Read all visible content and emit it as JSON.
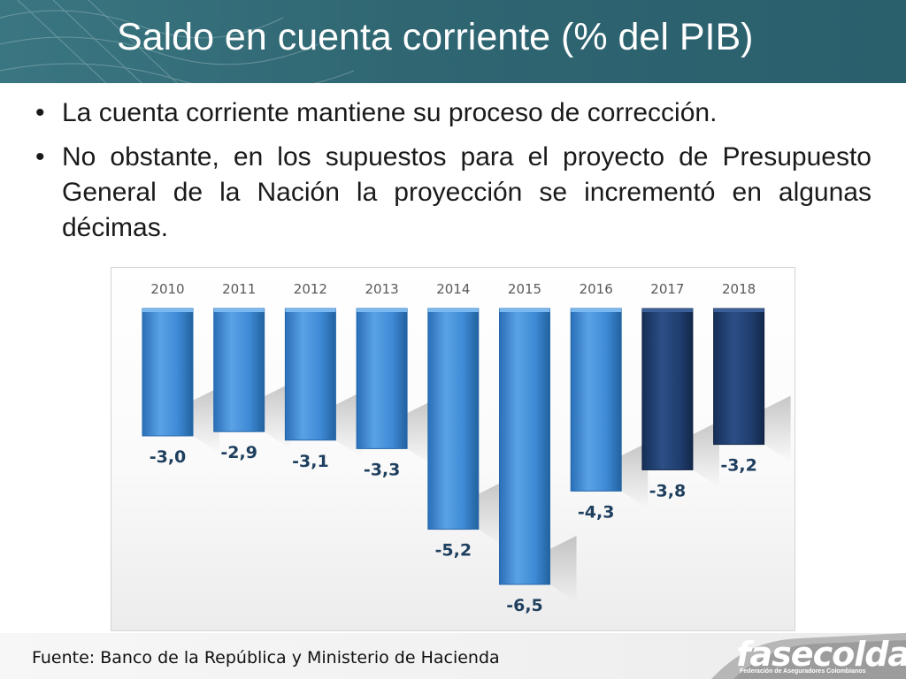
{
  "slide": {
    "title": "Saldo en cuenta corriente (% del PIB)",
    "bullets": [
      "La cuenta corriente mantiene su proceso de corrección.",
      "No obstante, en los supuestos para el proyecto de Presupuesto General de la Nación la proyección se incrementó en algunas décimas."
    ],
    "bullet_marker": "•"
  },
  "footer": {
    "source": "Fuente: Banco de la República y Ministerio de Hacienda",
    "logo_text": "fasecolda",
    "logo_subtitle": "Federación de Aseguradores Colombianos"
  },
  "colors": {
    "header_bg": "#2f6672",
    "bar_actual": "#3d89d6",
    "bar_projection": "#1e3d6e",
    "label_text": "#1f3f5f",
    "category_text": "#595959"
  },
  "chart_data": {
    "type": "bar",
    "title": "",
    "xlabel": "",
    "ylabel": "",
    "categories": [
      "2010",
      "2011",
      "2012",
      "2013",
      "2014",
      "2015",
      "2016",
      "2017",
      "2018"
    ],
    "values": [
      -3.0,
      -2.9,
      -3.1,
      -3.3,
      -5.2,
      -6.5,
      -4.3,
      -3.8,
      -3.2
    ],
    "value_labels": [
      "-3,0",
      "-2,9",
      "-3,1",
      "-3,3",
      "-5,2",
      "-6,5",
      "-4,3",
      "-3,8",
      "-3,2"
    ],
    "series_type": [
      "actual",
      "actual",
      "actual",
      "actual",
      "actual",
      "actual",
      "actual",
      "projection",
      "projection"
    ],
    "ylim": [
      -6.5,
      0
    ],
    "axis_position": "top",
    "grid": false,
    "legend": "none"
  }
}
